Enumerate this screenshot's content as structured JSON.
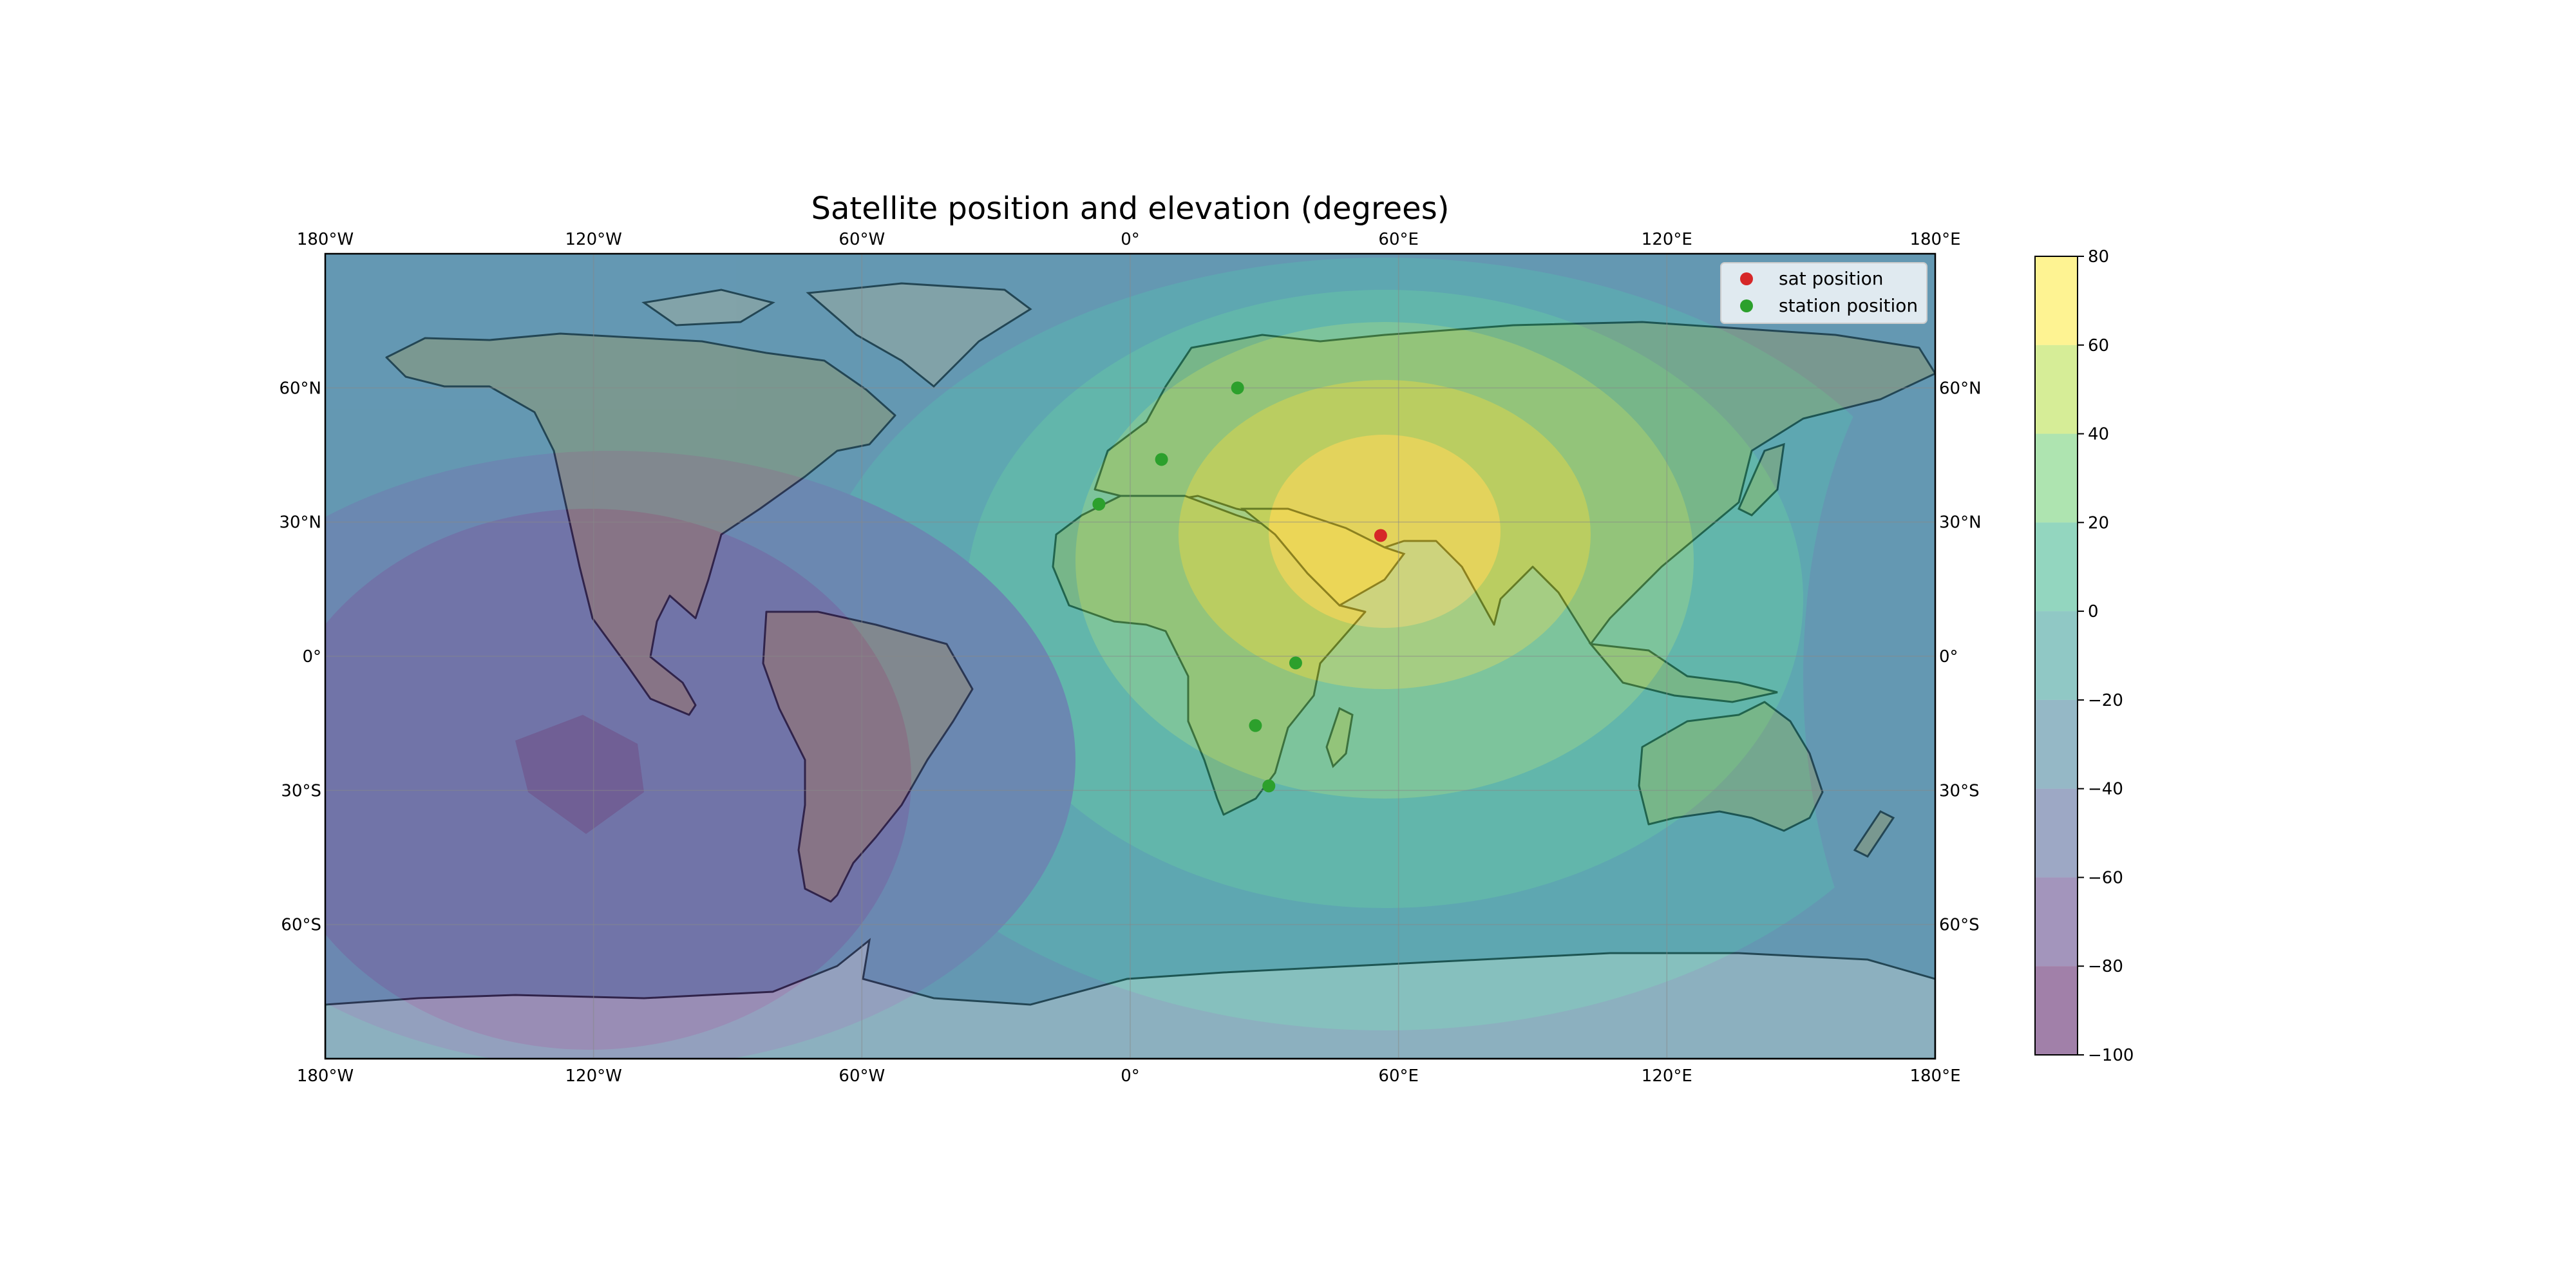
{
  "title": "Satellite position and elevation (degrees)",
  "map": {
    "projection": "PlateCarree",
    "lon_range": [
      -180,
      180
    ],
    "lat_range": [
      -90,
      90
    ],
    "gridlines": true,
    "features": [
      "coastlines",
      "borders",
      "stock_img"
    ],
    "lon_ticks": [
      {
        "value": -180,
        "label": "180°W"
      },
      {
        "value": -120,
        "label": "120°W"
      },
      {
        "value": -60,
        "label": "60°W"
      },
      {
        "value": 0,
        "label": "0°"
      },
      {
        "value": 60,
        "label": "60°E"
      },
      {
        "value": 120,
        "label": "120°E"
      },
      {
        "value": 180,
        "label": "180°E"
      }
    ],
    "lat_ticks": [
      {
        "value": 60,
        "label": "60°N"
      },
      {
        "value": 30,
        "label": "30°N"
      },
      {
        "value": 0,
        "label": "0°"
      },
      {
        "value": -30,
        "label": "30°S"
      },
      {
        "value": -60,
        "label": "60°S"
      }
    ]
  },
  "chart_data": {
    "type": "heatmap",
    "title": "Satellite position and elevation (degrees)",
    "subsatellite_point": {
      "lon": 56,
      "lat": 27
    },
    "levels": [
      -100,
      -80,
      -60,
      -40,
      -20,
      0,
      20,
      40,
      60,
      80
    ],
    "level_colors": [
      "#440154",
      "#472c7a",
      "#3b528b",
      "#2c728e",
      "#21918c",
      "#28ae80",
      "#5ec962",
      "#addc30",
      "#fde725"
    ],
    "alpha": 0.5,
    "series": [
      {
        "name": "sat position",
        "color": "#d62728",
        "points": [
          {
            "lon": 56,
            "lat": 27
          }
        ]
      },
      {
        "name": "station position",
        "color": "#2ca02c",
        "points": [
          {
            "lon": -7,
            "lat": 34
          },
          {
            "lon": 7,
            "lat": 44
          },
          {
            "lon": 24,
            "lat": 60
          },
          {
            "lon": 37,
            "lat": -1.5
          },
          {
            "lon": 28,
            "lat": -15.5
          },
          {
            "lon": 31,
            "lat": -29
          }
        ]
      }
    ],
    "colorbar": {
      "ticks": [
        80,
        60,
        40,
        20,
        0,
        -20,
        -40,
        -60,
        -80,
        -100
      ],
      "tick_labels": [
        "80",
        "60",
        "40",
        "20",
        "0",
        "−20",
        "−40",
        "−60",
        "−80",
        "−100"
      ]
    },
    "legend": {
      "placement": "upper right",
      "entries": [
        {
          "label": "sat position",
          "color": "#d62728"
        },
        {
          "label": "station position",
          "color": "#2ca02c"
        }
      ]
    }
  }
}
